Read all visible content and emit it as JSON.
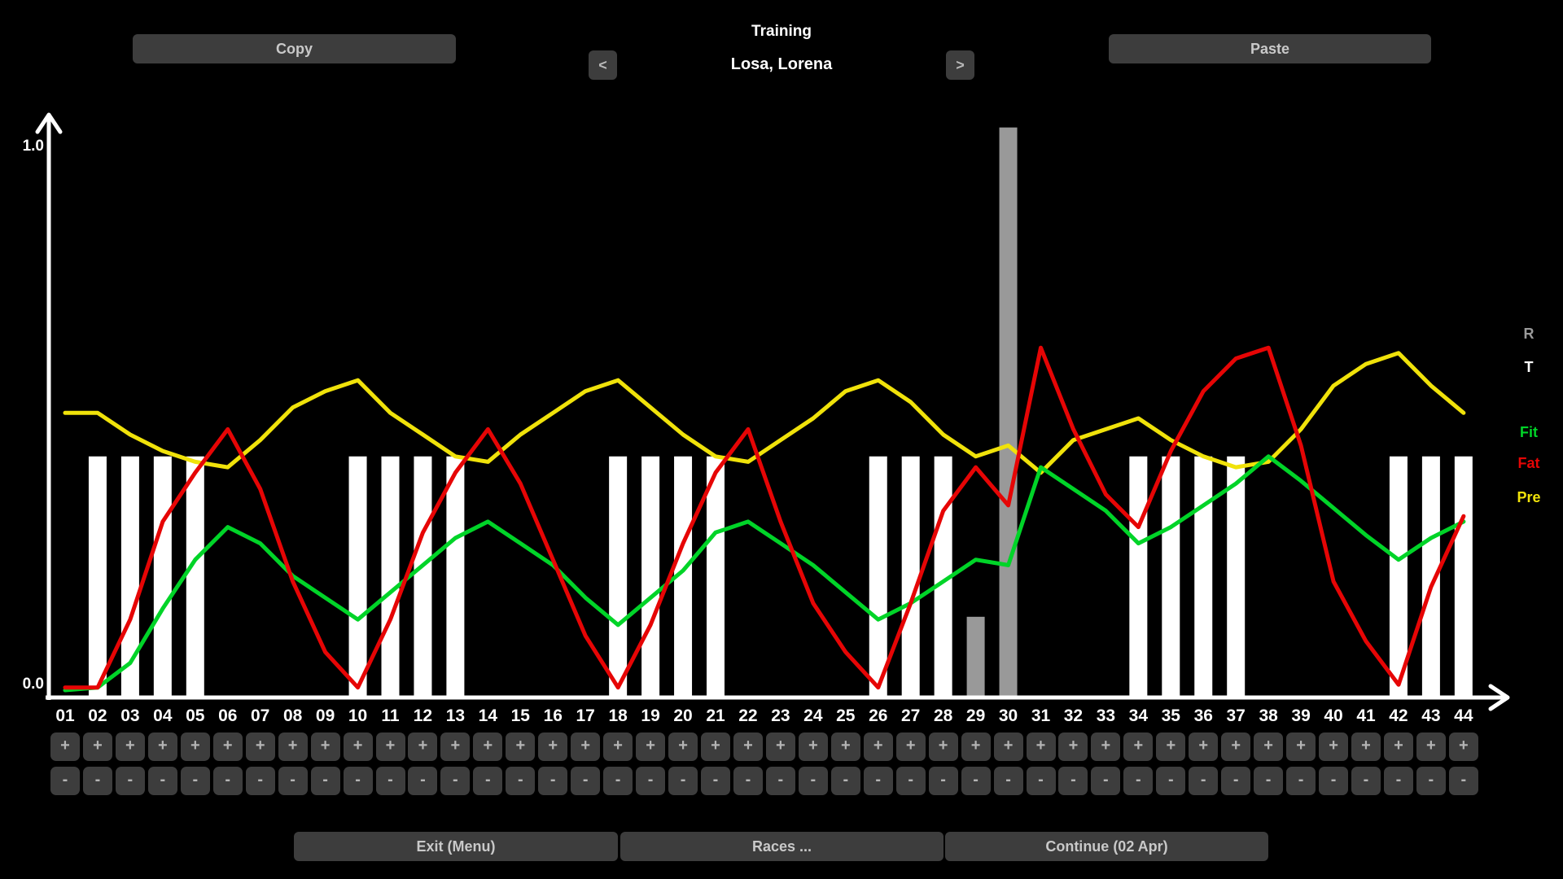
{
  "header": {
    "copy_label": "Copy",
    "paste_label": "Paste",
    "title": "Training",
    "rider_name": "Losa, Lorena",
    "prev_label": "<",
    "next_label": ">"
  },
  "axis": {
    "y_max_label": "1.0",
    "y_min_label": "0.0"
  },
  "legend": [
    {
      "label": "R",
      "color": "#9a9a9a"
    },
    {
      "label": "T",
      "color": "#ffffff"
    },
    {
      "label": "Fit",
      "color": "#00d428"
    },
    {
      "label": "Fat",
      "color": "#e60505"
    },
    {
      "label": "Pre",
      "color": "#f0e20a"
    }
  ],
  "week_controls": {
    "plus_label": "+",
    "minus_label": "-"
  },
  "footer": {
    "exit_label": "Exit (Menu)",
    "races_label": "Races ...",
    "continue_label": "Continue (02 Apr)"
  },
  "chart_data": {
    "type": "mixed-bar-line",
    "title": "Training",
    "ylim": [
      0.0,
      1.0
    ],
    "x_weeks": [
      "01",
      "02",
      "03",
      "04",
      "05",
      "06",
      "07",
      "08",
      "09",
      "10",
      "11",
      "12",
      "13",
      "14",
      "15",
      "16",
      "17",
      "18",
      "19",
      "20",
      "21",
      "22",
      "23",
      "24",
      "25",
      "26",
      "27",
      "28",
      "29",
      "30",
      "31",
      "32",
      "33",
      "34",
      "35",
      "36",
      "37",
      "38",
      "39",
      "40",
      "41",
      "42",
      "43",
      "44"
    ],
    "training_bar_weeks": [
      2,
      3,
      4,
      5,
      10,
      11,
      12,
      13,
      18,
      19,
      20,
      21,
      26,
      27,
      28,
      34,
      35,
      36,
      37,
      42,
      43,
      44
    ],
    "training_bar_value": 0.43,
    "training_bar_color": "#ffffff",
    "race_bars": [
      {
        "week": 29,
        "value": 0.135
      },
      {
        "week": 30,
        "value": 1.035
      }
    ],
    "race_bar_color": "#999999",
    "series": [
      {
        "name": "Pre",
        "color": "#f0e20a",
        "values": [
          0.51,
          0.51,
          0.47,
          0.44,
          0.42,
          0.41,
          0.46,
          0.52,
          0.55,
          0.57,
          0.51,
          0.47,
          0.43,
          0.42,
          0.47,
          0.51,
          0.55,
          0.57,
          0.52,
          0.47,
          0.43,
          0.42,
          0.46,
          0.5,
          0.55,
          0.57,
          0.53,
          0.47,
          0.43,
          0.45,
          0.4,
          0.46,
          0.48,
          0.5,
          0.46,
          0.43,
          0.41,
          0.42,
          0.48,
          0.56,
          0.6,
          0.62,
          0.56,
          0.51
        ]
      },
      {
        "name": "Fit",
        "color": "#00d428",
        "values": [
          0.0,
          0.005,
          0.05,
          0.15,
          0.24,
          0.3,
          0.27,
          0.21,
          0.17,
          0.13,
          0.18,
          0.23,
          0.28,
          0.31,
          0.27,
          0.23,
          0.17,
          0.12,
          0.17,
          0.22,
          0.29,
          0.31,
          0.27,
          0.23,
          0.18,
          0.13,
          0.16,
          0.2,
          0.24,
          0.23,
          0.41,
          0.37,
          0.33,
          0.27,
          0.3,
          0.34,
          0.38,
          0.43,
          0.385,
          0.335,
          0.285,
          0.24,
          0.28,
          0.31
        ]
      },
      {
        "name": "Fat",
        "color": "#e60505",
        "values": [
          0.005,
          0.005,
          0.13,
          0.31,
          0.4,
          0.48,
          0.37,
          0.2,
          0.07,
          0.005,
          0.13,
          0.29,
          0.4,
          0.48,
          0.38,
          0.24,
          0.1,
          0.005,
          0.12,
          0.27,
          0.4,
          0.48,
          0.31,
          0.16,
          0.07,
          0.005,
          0.16,
          0.33,
          0.41,
          0.34,
          0.63,
          0.48,
          0.36,
          0.3,
          0.44,
          0.55,
          0.61,
          0.63,
          0.45,
          0.2,
          0.09,
          0.01,
          0.19,
          0.32
        ]
      }
    ]
  }
}
